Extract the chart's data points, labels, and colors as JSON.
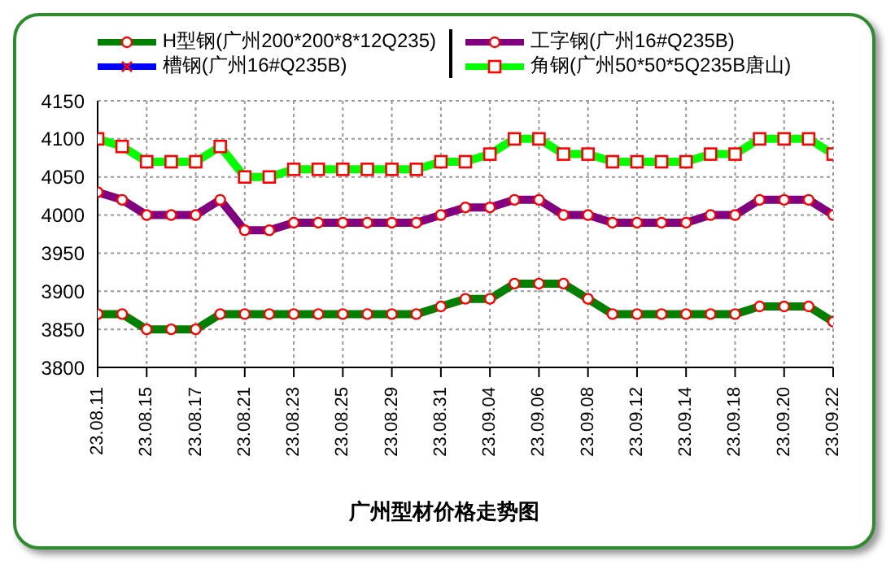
{
  "chart_data": {
    "type": "line",
    "title": "广州型材价格走势图",
    "categories": [
      "23.08.11",
      null,
      "23.08.15",
      null,
      "23.08.17",
      null,
      "23.08.21",
      null,
      "23.08.23",
      null,
      "23.08.25",
      null,
      "23.08.29",
      null,
      "23.08.31",
      null,
      "23.09.04",
      null,
      "23.09.06",
      null,
      "23.09.08",
      null,
      "23.09.12",
      null,
      "23.09.14",
      null,
      "23.09.18",
      null,
      "23.09.20",
      null,
      "23.09.22"
    ],
    "series": [
      {
        "name": "H型钢(广州200*200*8*12Q235)",
        "color": "#008000",
        "marker": "circle",
        "values": [
          3870,
          3870,
          3850,
          3850,
          3850,
          3870,
          3870,
          3870,
          3870,
          3870,
          3870,
          3870,
          3870,
          3870,
          3880,
          3890,
          3890,
          3910,
          3910,
          3910,
          3890,
          3870,
          3870,
          3870,
          3870,
          3870,
          3870,
          3880,
          3880,
          3880,
          3860
        ]
      },
      {
        "name": "工字钢(广州16#Q235B)",
        "color": "#800080",
        "marker": "circle",
        "values": [
          4030,
          4020,
          4000,
          4000,
          4000,
          4020,
          3980,
          3980,
          3990,
          3990,
          3990,
          3990,
          3990,
          3990,
          4000,
          4010,
          4010,
          4020,
          4020,
          4000,
          4000,
          3990,
          3990,
          3990,
          3990,
          4000,
          4000,
          4020,
          4020,
          4020,
          4000
        ]
      },
      {
        "name": "槽钢(广州16#Q235B)",
        "color": "#0000ff",
        "marker": "cross",
        "values": [
          null,
          null,
          null,
          null,
          null,
          null,
          null,
          null,
          null,
          null,
          null,
          null,
          null,
          null,
          null,
          null,
          null,
          null,
          null,
          null,
          null,
          null,
          null,
          null,
          null,
          null,
          null,
          null,
          null,
          null,
          null
        ]
      },
      {
        "name": "角钢(广州50*50*5Q235B唐山)",
        "color": "#00ff00",
        "marker": "square",
        "values": [
          4100,
          4090,
          4070,
          4070,
          4070,
          4090,
          4050,
          4050,
          4060,
          4060,
          4060,
          4060,
          4060,
          4060,
          4070,
          4070,
          4080,
          4100,
          4100,
          4080,
          4080,
          4070,
          4070,
          4070,
          4070,
          4080,
          4080,
          4100,
          4100,
          4100,
          4080
        ]
      }
    ],
    "ylim": [
      3800,
      4150
    ],
    "yticks": [
      3800,
      3850,
      3900,
      3950,
      4000,
      4050,
      4100,
      4150
    ],
    "grid": true,
    "legend": "top"
  }
}
